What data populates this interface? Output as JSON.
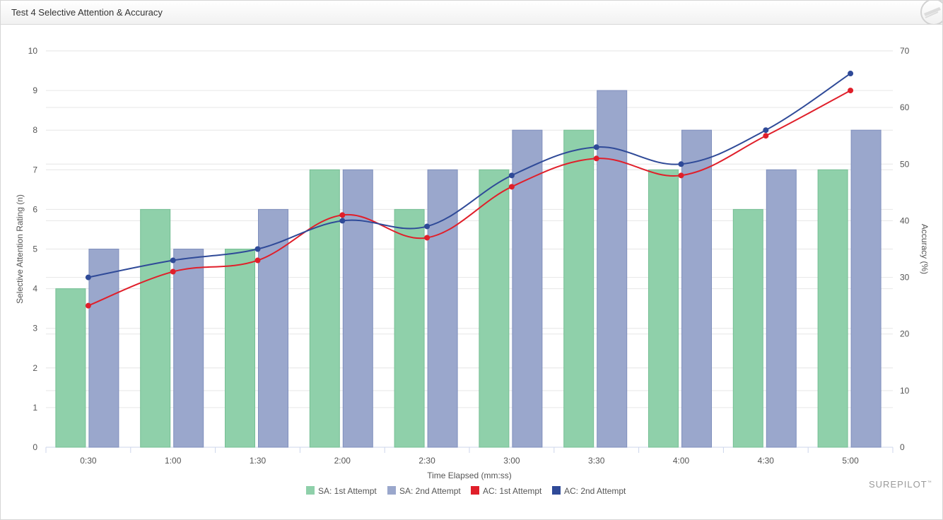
{
  "panel": {
    "title": "Test 4 Selective Attention & Accuracy",
    "icon": "pencil-badge-icon"
  },
  "brand": {
    "text": "SUREPILOT",
    "mark": "™"
  },
  "colors": {
    "sa1": "#8fd0aa",
    "sa2": "#9aa7cc",
    "ac1": "#e01f2a",
    "ac2": "#2f4a98",
    "grid": "#e6e6e6",
    "axis": "#ccd6eb"
  },
  "chart_data": {
    "type": "bar",
    "title": "",
    "xlabel": "Time Elapsed (mm:ss)",
    "ylabel": "Selective Attention Rating (n)",
    "y2label": "Accuracy (%)",
    "ylim": [
      0,
      10
    ],
    "y2lim": [
      0,
      70
    ],
    "yticks": [
      0,
      1,
      2,
      3,
      4,
      5,
      6,
      7,
      8,
      9,
      10
    ],
    "y2ticks": [
      0,
      10,
      20,
      30,
      40,
      50,
      60,
      70
    ],
    "grid": true,
    "legend": "bottom-center",
    "categories": [
      "0:30",
      "1:00",
      "1:30",
      "2:00",
      "2:30",
      "3:00",
      "3:30",
      "4:00",
      "4:30",
      "5:00"
    ],
    "series": [
      {
        "name": "SA: 1st Attempt",
        "type": "bar",
        "axis": "left",
        "values": [
          4,
          6,
          5,
          7,
          6,
          7,
          8,
          7,
          6,
          7
        ]
      },
      {
        "name": "SA: 2nd Attempt",
        "type": "bar",
        "axis": "left",
        "values": [
          5,
          5,
          6,
          7,
          7,
          8,
          9,
          8,
          7,
          8
        ]
      },
      {
        "name": "AC: 1st Attempt",
        "type": "line",
        "axis": "right",
        "values": [
          25,
          31,
          33,
          41,
          37,
          46,
          51,
          48,
          55,
          63
        ]
      },
      {
        "name": "AC: 2nd Attempt",
        "type": "line",
        "axis": "right",
        "values": [
          30,
          33,
          35,
          40,
          39,
          48,
          53,
          50,
          56,
          66
        ]
      }
    ]
  }
}
